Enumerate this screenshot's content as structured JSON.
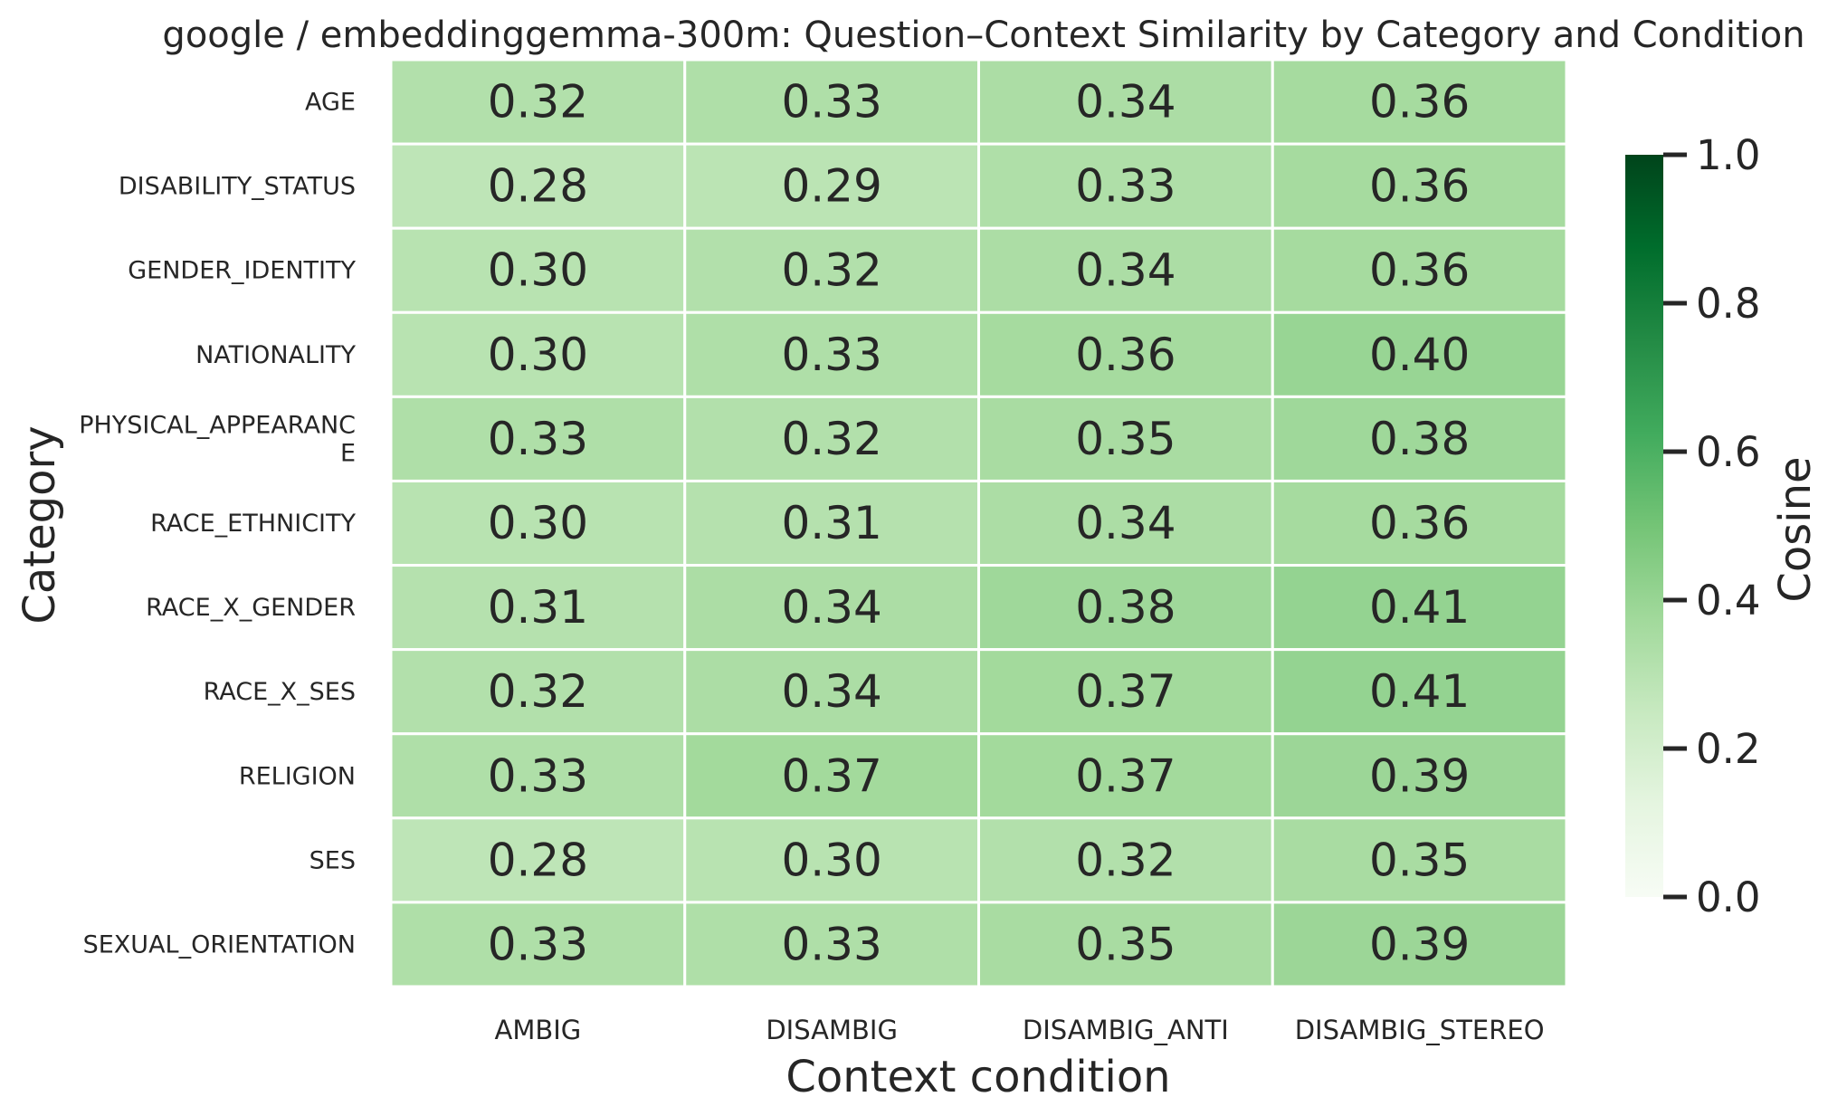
{
  "chart_data": {
    "type": "heatmap",
    "title": "google / embeddinggemma-300m: Question–Context Similarity by Category and Condition",
    "xlabel": "Context condition",
    "ylabel": "Category",
    "x_categories": [
      "AMBIG",
      "DISAMBIG",
      "DISAMBIG_ANTI",
      "DISAMBIG_STEREO"
    ],
    "y_categories": [
      {
        "lines": [
          "AGE"
        ]
      },
      {
        "lines": [
          "DISABILITY_STATUS"
        ]
      },
      {
        "lines": [
          "GENDER_IDENTITY"
        ]
      },
      {
        "lines": [
          "NATIONALITY"
        ]
      },
      {
        "lines": [
          "PHYSICAL_APPEARANC",
          "E"
        ]
      },
      {
        "lines": [
          "RACE_ETHNICITY"
        ]
      },
      {
        "lines": [
          "RACE_X_GENDER"
        ]
      },
      {
        "lines": [
          "RACE_X_SES"
        ]
      },
      {
        "lines": [
          "RELIGION"
        ]
      },
      {
        "lines": [
          "SES"
        ]
      },
      {
        "lines": [
          "SEXUAL_ORIENTATION"
        ]
      }
    ],
    "values": [
      [
        "0.32",
        "0.33",
        "0.34",
        "0.36"
      ],
      [
        "0.28",
        "0.29",
        "0.33",
        "0.36"
      ],
      [
        "0.30",
        "0.32",
        "0.34",
        "0.36"
      ],
      [
        "0.30",
        "0.33",
        "0.36",
        "0.40"
      ],
      [
        "0.33",
        "0.32",
        "0.35",
        "0.38"
      ],
      [
        "0.30",
        "0.31",
        "0.34",
        "0.36"
      ],
      [
        "0.31",
        "0.34",
        "0.38",
        "0.41"
      ],
      [
        "0.32",
        "0.34",
        "0.37",
        "0.41"
      ],
      [
        "0.33",
        "0.37",
        "0.37",
        "0.39"
      ],
      [
        "0.28",
        "0.30",
        "0.32",
        "0.35"
      ],
      [
        "0.33",
        "0.33",
        "0.35",
        "0.39"
      ]
    ],
    "colorbar": {
      "label": "Cosine",
      "range": [
        0,
        1
      ],
      "ticks": [
        "0.0",
        "0.2",
        "0.4",
        "0.6",
        "0.8",
        "1.0"
      ],
      "colormap": "Greens",
      "stops": [
        "#f7fcf5",
        "#e5f5e0",
        "#c7e9c0",
        "#a1d99b",
        "#74c476",
        "#41ab5d",
        "#238b45",
        "#006d2c",
        "#00441b"
      ]
    },
    "gridlines": "white"
  }
}
